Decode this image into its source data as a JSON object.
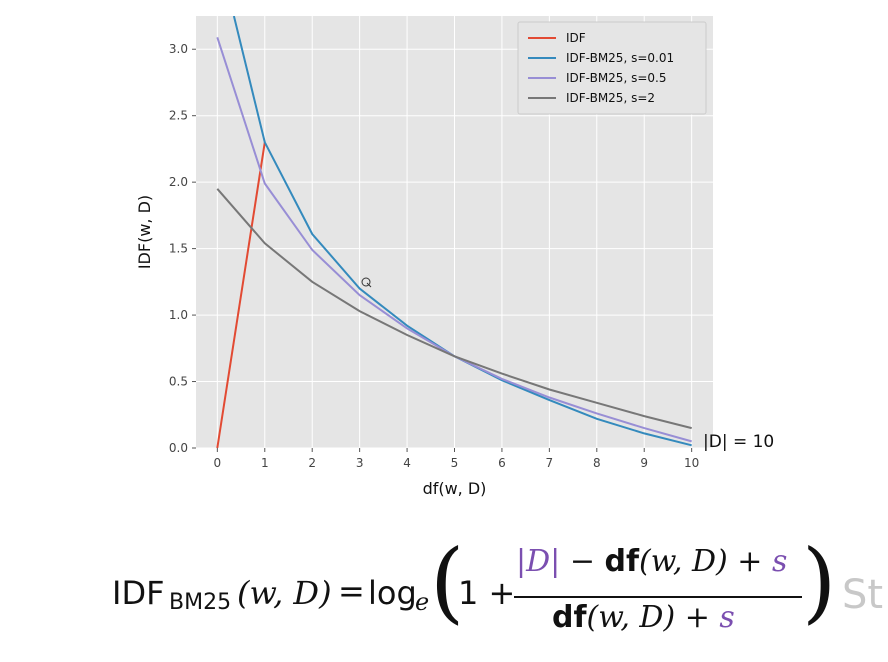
{
  "chart_data": {
    "type": "line",
    "xlabel": "df(w, D)",
    "ylabel": "IDF(w, D)",
    "xlim": [
      -0.45,
      10.45
    ],
    "ylim": [
      0,
      3.25
    ],
    "xticks": [
      0,
      1,
      2,
      3,
      4,
      5,
      6,
      7,
      8,
      9,
      10
    ],
    "yticks": [
      0.0,
      0.5,
      1.0,
      1.5,
      2.0,
      2.5,
      3.0
    ],
    "ytick_labels": [
      "0.0",
      "0.5",
      "1.0",
      "1.5",
      "2.0",
      "2.5",
      "3.0"
    ],
    "grid": true,
    "legend_position": "top-right",
    "annotation": "|D| = 10",
    "series": [
      {
        "name": "IDF",
        "color": "#e24a33",
        "x": [
          0,
          1
        ],
        "y": [
          0,
          2.3
        ]
      },
      {
        "name": "IDF-BM25, s=0.01",
        "color": "#348abd",
        "x": [
          0.35,
          1,
          2,
          3,
          4,
          5,
          6,
          7,
          8,
          9,
          10
        ],
        "y": [
          3.25,
          2.3,
          1.61,
          1.2,
          0.92,
          0.69,
          0.51,
          0.36,
          0.22,
          0.11,
          0.02
        ]
      },
      {
        "name": "IDF-BM25, s=0.5",
        "color": "#988ed5",
        "x": [
          0,
          1,
          2,
          3,
          4,
          5,
          6,
          7,
          8,
          9,
          10
        ],
        "y": [
          3.09,
          1.99,
          1.49,
          1.15,
          0.9,
          0.69,
          0.52,
          0.38,
          0.26,
          0.15,
          0.05
        ]
      },
      {
        "name": "IDF-BM25, s=2",
        "color": "#777777",
        "x": [
          0,
          1,
          2,
          3,
          4,
          5,
          6,
          7,
          8,
          9,
          10
        ],
        "y": [
          1.95,
          1.54,
          1.25,
          1.03,
          0.85,
          0.69,
          0.56,
          0.44,
          0.34,
          0.24,
          0.15
        ]
      }
    ]
  },
  "formula": {
    "lhs_name": "IDF",
    "lhs_sub": "BM25",
    "lhs_args": "(w, D)",
    "equals": "=",
    "log": "log",
    "log_base": "e",
    "one_plus": "1 +",
    "num_d": "|D|",
    "minus": "−",
    "df": "df",
    "args": "(w, D)",
    "plus": "+",
    "s": "s"
  },
  "cut_off_text": "St"
}
